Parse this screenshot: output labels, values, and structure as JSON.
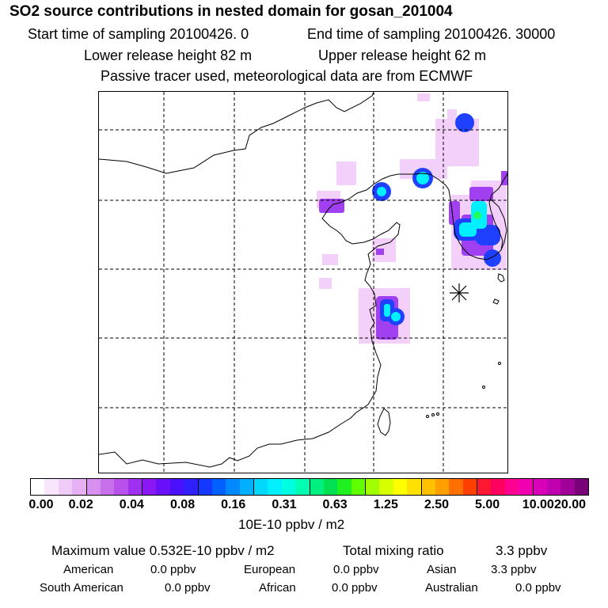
{
  "header": {
    "title": "SO2 source contributions in nested domain for gosan_201004",
    "start_time": "Start time of sampling 20100426.     0",
    "end_time": "End time of sampling 20100426. 30000",
    "lower_release": "Lower release height   82 m",
    "upper_release": "Upper release height   62 m",
    "tracer_note": "Passive tracer used, meteorological data are from ECMWF"
  },
  "map": {
    "station_marker": "receptor-star",
    "plume_colors": {
      "light": "#f2c8f8",
      "purple": "#a040f0",
      "blue": "#2040ff",
      "cyan": "#00f0ff",
      "green": "#20ff60"
    }
  },
  "colorbar": {
    "swatches": [
      "#ffffff",
      "#f8e6fc",
      "#f0ccf8",
      "#e6b0f4",
      "#d890f0",
      "#c870ec",
      "#b850ec",
      "#a030f0",
      "#8a18f4",
      "#6a10f8",
      "#4a10fc",
      "#3020ff",
      "#1438ff",
      "#0060ff",
      "#0088ff",
      "#00b0ff",
      "#00d8ff",
      "#00f0ff",
      "#00ffe0",
      "#00ffb0",
      "#00f080",
      "#00e050",
      "#20f020",
      "#60ff00",
      "#a0ff00",
      "#d8ff00",
      "#ffff00",
      "#ffe000",
      "#ffc000",
      "#ffa000",
      "#ff7000",
      "#ff4000",
      "#ff1830",
      "#ff0060",
      "#ff0090",
      "#f000b0",
      "#d800b8",
      "#c000b0",
      "#a00098",
      "#7a0078"
    ],
    "ticks": [
      "0.00",
      "0.02",
      "0.04",
      "0.08",
      "0.16",
      "0.31",
      "0.63",
      "1.25",
      "2.50",
      "5.00",
      "10.00",
      "20.00"
    ],
    "unit": "10E-10 ppbv / m2"
  },
  "stats": {
    "max_value": "Maximum value  0.532E-10 ppbv / m2",
    "total_label": "Total mixing ratio",
    "total_value": "3.3 ppbv",
    "american_label": "American",
    "american_value": "0.0 ppbv",
    "european_label": "European",
    "european_value": "0.0 ppbv",
    "asian_label": "Asian",
    "asian_value": "3.3 ppbv",
    "south_american_label": "South American",
    "south_american_value": "0.0 ppbv",
    "african_label": "African",
    "african_value": "0.0 ppbv",
    "australian_label": "Australian",
    "australian_value": "0.0 ppbv"
  }
}
